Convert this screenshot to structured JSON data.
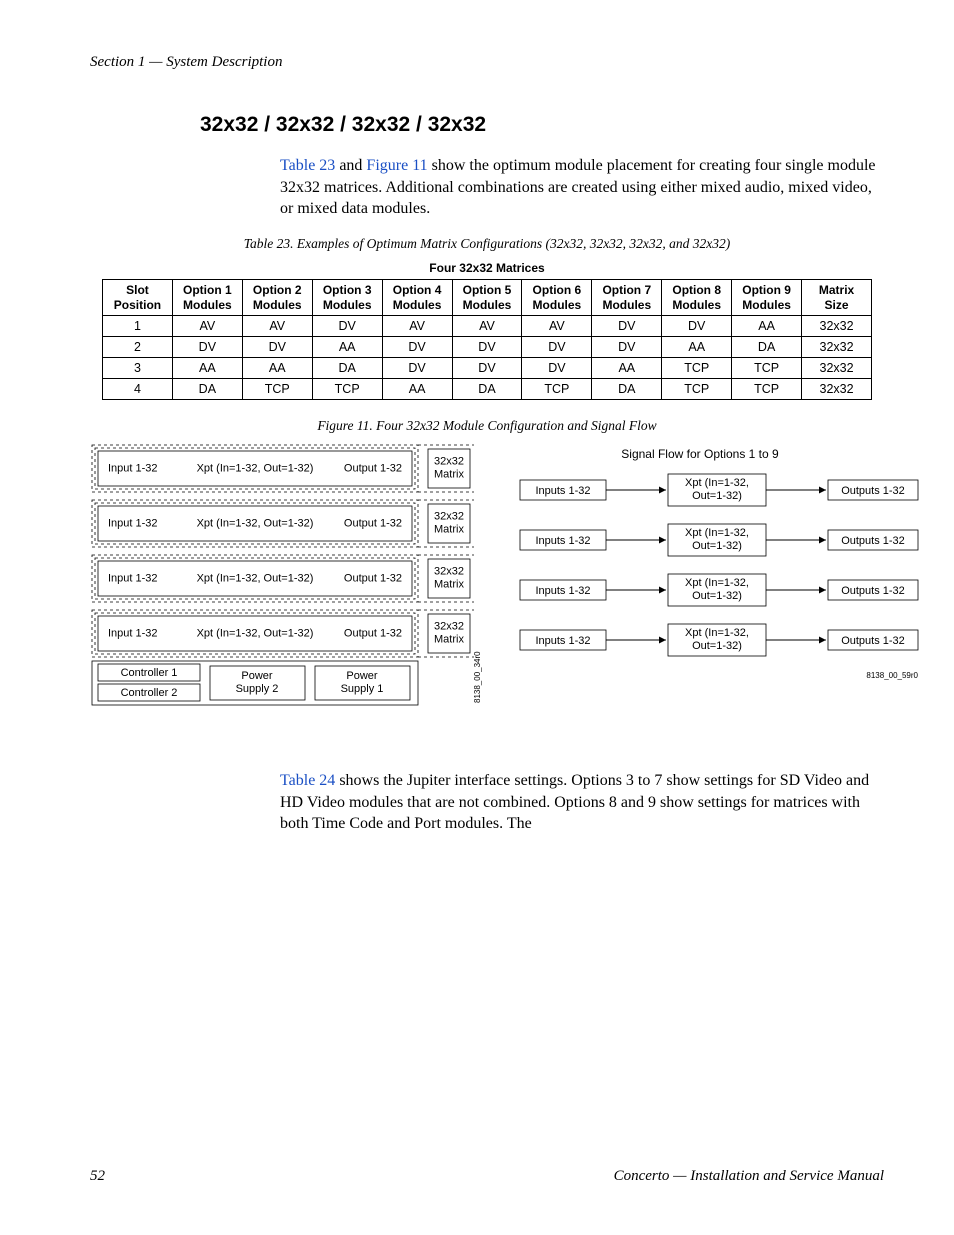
{
  "page": {
    "running_head": "Section 1 — System Description",
    "page_number": "52",
    "footer_title": "Concerto  —  Installation and Service Manual"
  },
  "heading": "32x32 / 32x32 / 32x32 / 32x32",
  "para1": {
    "pre": "",
    "ref1": "Table 23",
    "mid1": " and ",
    "ref2": "Figure 11",
    "post": " show the optimum module placement for creating four single module 32x32 matrices. Additional combinations are created using either mixed audio, mixed video, or mixed data modules."
  },
  "table23": {
    "caption": "Table 23.  Examples of Optimum Matrix Configurations (32x32, 32x32, 32x32, and 32x32)",
    "super_header": "Four 32x32 Matrices",
    "columns": [
      "Slot\nPosition",
      "Option 1\nModules",
      "Option 2\nModules",
      "Option 3\nModules",
      "Option 4\nModules",
      "Option 5\nModules",
      "Option 6\nModules",
      "Option 7\nModules",
      "Option 8\nModules",
      "Option 9\nModules",
      "Matrix\nSize"
    ],
    "rows": [
      [
        "1",
        "AV",
        "AV",
        "DV",
        "AV",
        "AV",
        "AV",
        "DV",
        "DV",
        "AA",
        "32x32"
      ],
      [
        "2",
        "DV",
        "DV",
        "AA",
        "DV",
        "DV",
        "DV",
        "DV",
        "AA",
        "DA",
        "32x32"
      ],
      [
        "3",
        "AA",
        "AA",
        "DA",
        "DV",
        "DV",
        "DV",
        "AA",
        "TCP",
        "TCP",
        "32x32"
      ],
      [
        "4",
        "DA",
        "TCP",
        "TCP",
        "AA",
        "DA",
        "TCP",
        "DA",
        "TCP",
        "TCP",
        "32x32"
      ]
    ]
  },
  "figure11": {
    "caption": "Figure 11.  Four 32x32 Module Configuration and Signal Flow",
    "left": {
      "rows": [
        {
          "in": "Input 1-32",
          "xpt": "Xpt (In=1-32, Out=1-32)",
          "out": "Output 1-32",
          "matrix": "32x32\nMatrix"
        },
        {
          "in": "Input 1-32",
          "xpt": "Xpt (In=1-32, Out=1-32)",
          "out": "Output 1-32",
          "matrix": "32x32\nMatrix"
        },
        {
          "in": "Input 1-32",
          "xpt": "Xpt (In=1-32, Out=1-32)",
          "out": "Output 1-32",
          "matrix": "32x32\nMatrix"
        },
        {
          "in": "Input 1-32",
          "xpt": "Xpt (In=1-32, Out=1-32)",
          "out": "Output 1-32",
          "matrix": "32x32\nMatrix"
        }
      ],
      "controller1": "Controller 1",
      "controller2": "Controller 2",
      "ps2": "Power\nSupply 2",
      "ps1": "Power\nSupply 1",
      "ref": "8138_00_34r0"
    },
    "right": {
      "title": "Signal Flow for Options 1 to 9",
      "rows": [
        {
          "in": "Inputs 1-32",
          "xpt": "Xpt (In=1-32,\nOut=1-32)",
          "out": "Outputs 1-32"
        },
        {
          "in": "Inputs 1-32",
          "xpt": "Xpt (In=1-32,\nOut=1-32)",
          "out": "Outputs 1-32"
        },
        {
          "in": "Inputs 1-32",
          "xpt": "Xpt (In=1-32,\nOut=1-32)",
          "out": "Outputs 1-32"
        },
        {
          "in": "Inputs 1-32",
          "xpt": "Xpt (In=1-32,\nOut=1-32)",
          "out": "Outputs 1-32"
        }
      ],
      "ref": "8138_00_59r0"
    }
  },
  "para2": {
    "ref": "Table 24",
    "post": " shows the Jupiter interface settings. Options 3 to 7 show settings for SD Video and HD Video modules that are not combined. Options 8 and 9 show settings for matrices with both Time Code and Port modules. The"
  },
  "style": {
    "link_color": "#1a4fc4",
    "font_body": "Georgia",
    "font_ui": "Arial",
    "table_border": "#000000"
  }
}
